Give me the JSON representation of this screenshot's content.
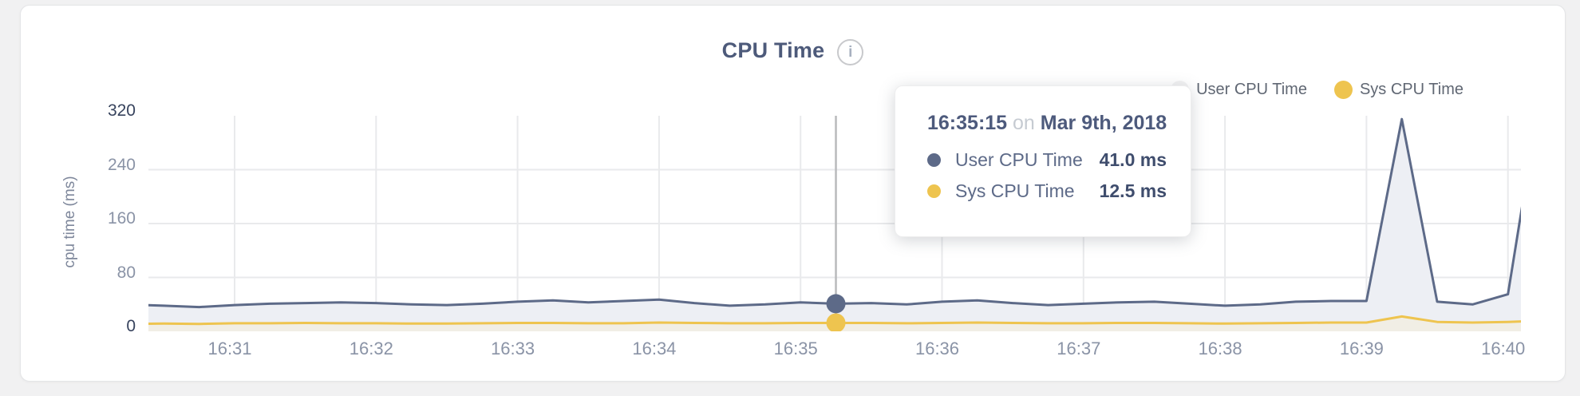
{
  "page": {
    "background": "#f1f1f2"
  },
  "panel": {
    "title": "CPU Time",
    "info_icon_glyph": "i"
  },
  "legend": {
    "items": [
      {
        "label": "User CPU Time",
        "dot_color": "#f2f2f3"
      },
      {
        "label": "Sys CPU Time",
        "dot_color": "#eec44f"
      }
    ]
  },
  "tooltip": {
    "time": "16:35:15",
    "preposition": "on",
    "date": "Mar 9th, 2018",
    "rows": [
      {
        "label": "User CPU Time",
        "value": "41.0 ms",
        "dot_color": "#5d6a88"
      },
      {
        "label": "Sys CPU Time",
        "value": "12.5 ms",
        "dot_color": "#eec44f"
      }
    ]
  },
  "chart_data": {
    "type": "area",
    "title": "CPU Time",
    "xlabel": "",
    "ylabel": "cpu time (ms)",
    "ylim": [
      0,
      320
    ],
    "y_ticks": [
      320,
      240,
      160,
      80,
      0
    ],
    "x_tick_labels": [
      "16:31",
      "16:32",
      "16:33",
      "16:34",
      "16:35",
      "16:36",
      "16:37",
      "16:38",
      "16:39",
      "16:40"
    ],
    "grid": true,
    "legend_position": "top-right",
    "selected_point": {
      "time": "16:35:15",
      "date": "Mar 9th, 2018",
      "user_cpu_ms": 41.0,
      "sys_cpu_ms": 12.5
    },
    "x": [
      "16:30:15",
      "16:30:30",
      "16:30:45",
      "16:31:00",
      "16:31:15",
      "16:31:30",
      "16:31:45",
      "16:32:00",
      "16:32:15",
      "16:32:30",
      "16:32:45",
      "16:33:00",
      "16:33:15",
      "16:33:30",
      "16:33:45",
      "16:34:00",
      "16:34:15",
      "16:34:30",
      "16:34:45",
      "16:35:00",
      "16:35:15",
      "16:35:30",
      "16:35:45",
      "16:36:00",
      "16:36:15",
      "16:36:30",
      "16:36:45",
      "16:37:00",
      "16:37:15",
      "16:37:30",
      "16:37:45",
      "16:38:00",
      "16:38:15",
      "16:38:30",
      "16:38:45",
      "16:39:00",
      "16:39:15",
      "16:39:30",
      "16:39:45",
      "16:40:00",
      "16:40:15"
    ],
    "series": [
      {
        "name": "User CPU Time",
        "unit": "ms",
        "color": "#5d6a88",
        "fill": "#edeff4",
        "values": [
          40,
          38,
          36,
          39,
          41,
          42,
          43,
          42,
          40,
          39,
          41,
          44,
          46,
          43,
          45,
          47,
          42,
          38,
          40,
          43,
          41,
          42,
          40,
          44,
          46,
          42,
          39,
          41,
          43,
          44,
          41,
          38,
          40,
          44,
          45,
          45,
          315,
          44,
          40,
          55,
          380
        ]
      },
      {
        "name": "Sys CPU Time",
        "unit": "ms",
        "color": "#eec44f",
        "fill": "#f1eee5",
        "values": [
          11,
          11.5,
          11,
          12,
          12,
          12.5,
          12,
          12,
          11.5,
          11.5,
          12,
          12.5,
          12.5,
          12,
          12,
          13,
          12.5,
          12,
          12,
          12.5,
          12.5,
          12.5,
          12,
          12.5,
          13,
          12.5,
          12,
          12,
          12.5,
          12.5,
          12,
          11.5,
          12,
          12.5,
          13,
          13,
          22,
          14,
          13,
          14,
          16
        ]
      }
    ],
    "colors": {
      "gridline": "#e9eaec",
      "crosshair": "#b9babc",
      "y_tick_edge": "#37435d",
      "y_tick_mid": "#8a93a6",
      "x_tick": "#8a93a6"
    }
  }
}
